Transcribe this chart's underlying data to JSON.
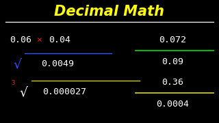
{
  "title": "Decimal Math",
  "title_color": "#FFFF00",
  "title_underline_color": "#FFFFFF",
  "bg_color": "#000000",
  "left_col": {
    "mult_left": "0.06",
    "mult_x": "×",
    "mult_right": "0.04",
    "sqrt_radicand": "0.0049",
    "cbrt_radicand": "0.000027"
  },
  "right_col": {
    "div1_num": "0.072",
    "div1_den": "0.09",
    "div1_line_color": "#00CC00",
    "div2_num": "0.36",
    "div2_den": "0.0004",
    "div2_line_color": "#CCCC00"
  },
  "white": "#FFFFFF",
  "red": "#DD2222",
  "blue": "#3355FF",
  "yellow": "#FFFF00"
}
